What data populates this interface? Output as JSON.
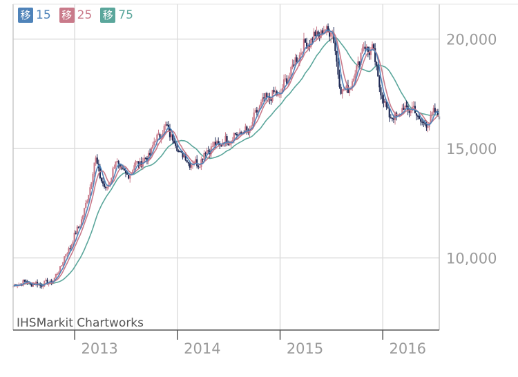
{
  "chart_data": {
    "type": "candlestick",
    "title": "",
    "xlabel": "",
    "ylabel": "",
    "x_start_year": 2012.4,
    "x_end_year": 2016.55,
    "ylim": [
      6700,
      21600
    ],
    "yticks": [
      10000,
      15000,
      20000
    ],
    "ytick_labels": [
      "10,000",
      "15,000",
      "20,000"
    ],
    "xticks": [
      2013,
      2014,
      2015,
      2016
    ],
    "xtick_labels": [
      "2013",
      "2014",
      "2015",
      "2016"
    ],
    "grid": true,
    "legend_position": "top-left",
    "legend": [
      {
        "glyph": "移",
        "label": "15",
        "color": "#4f83b9"
      },
      {
        "glyph": "移",
        "label": "25",
        "color": "#c97a8a"
      },
      {
        "glyph": "移",
        "label": "75",
        "color": "#5aa69b"
      }
    ],
    "credit": "IHSMarkit Chartworks",
    "candle_colors": {
      "up": "#c97a8a",
      "down": "#1f2a55"
    },
    "price_series": {
      "name": "",
      "x": [
        2012.4,
        2012.5,
        2012.6,
        2012.7,
        2012.8,
        2012.9,
        2013.0,
        2013.1,
        2013.2,
        2013.3,
        2013.4,
        2013.5,
        2013.6,
        2013.7,
        2013.8,
        2013.9,
        2014.0,
        2014.1,
        2014.2,
        2014.3,
        2014.4,
        2014.5,
        2014.6,
        2014.7,
        2014.8,
        2014.9,
        2015.0,
        2015.1,
        2015.2,
        2015.3,
        2015.4,
        2015.5,
        2015.6,
        2015.7,
        2015.8,
        2015.9,
        2016.0,
        2016.1,
        2016.2,
        2016.3,
        2016.4,
        2016.5,
        2016.55
      ],
      "y": [
        8700,
        8900,
        8800,
        8800,
        9000,
        10000,
        11000,
        12200,
        14500,
        13000,
        14400,
        13700,
        14300,
        14500,
        15500,
        16000,
        15000,
        14400,
        14300,
        15000,
        15200,
        15400,
        15700,
        15800,
        17000,
        17400,
        17500,
        18500,
        19500,
        20000,
        20300,
        20500,
        17500,
        18000,
        19600,
        19500,
        17200,
        16300,
        16800,
        16800,
        16000,
        16600,
        16600
      ]
    }
  }
}
